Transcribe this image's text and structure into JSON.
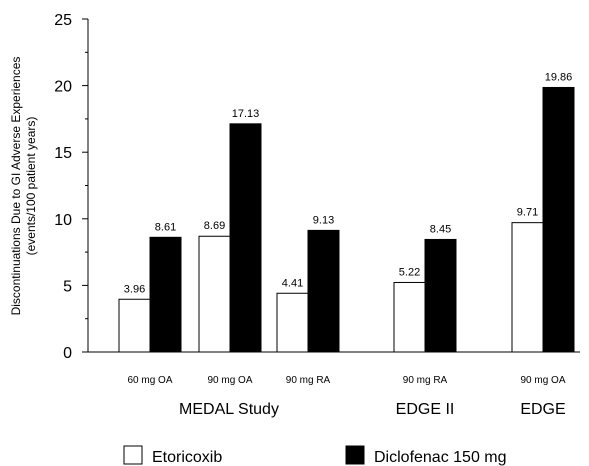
{
  "chart_data": {
    "type": "bar",
    "ylabel_line1": "Discontinuations Due to GI Adverse Experiences",
    "ylabel_line2": "(events/100 patient years)",
    "ylim": [
      0,
      25
    ],
    "yticks": [
      "0",
      "5",
      "10",
      "15",
      "20",
      "25"
    ],
    "categories": [
      "60 mg OA",
      "90 mg OA",
      "90 mg RA",
      "90 mg RA",
      "90 mg OA"
    ],
    "groups": [
      {
        "label": "MEDAL Study",
        "categories": [
          0,
          1,
          2
        ]
      },
      {
        "label": "EDGE II",
        "categories": [
          3
        ]
      },
      {
        "label": "EDGE",
        "categories": [
          4
        ]
      }
    ],
    "series": [
      {
        "name": "Etoricoxib",
        "values": [
          3.96,
          8.69,
          4.41,
          5.22,
          9.71
        ],
        "labels": [
          "3.96",
          "8.69",
          "4.41",
          "5.22",
          "9.71"
        ],
        "color": "#ffffff"
      },
      {
        "name": "Diclofenac 150 mg",
        "values": [
          8.61,
          17.13,
          9.13,
          8.45,
          19.86
        ],
        "labels": [
          "8.61",
          "17.13",
          "9.13",
          "8.45",
          "19.86"
        ],
        "color": "#000000"
      }
    ],
    "legend_position": "bottom",
    "grid": false
  }
}
